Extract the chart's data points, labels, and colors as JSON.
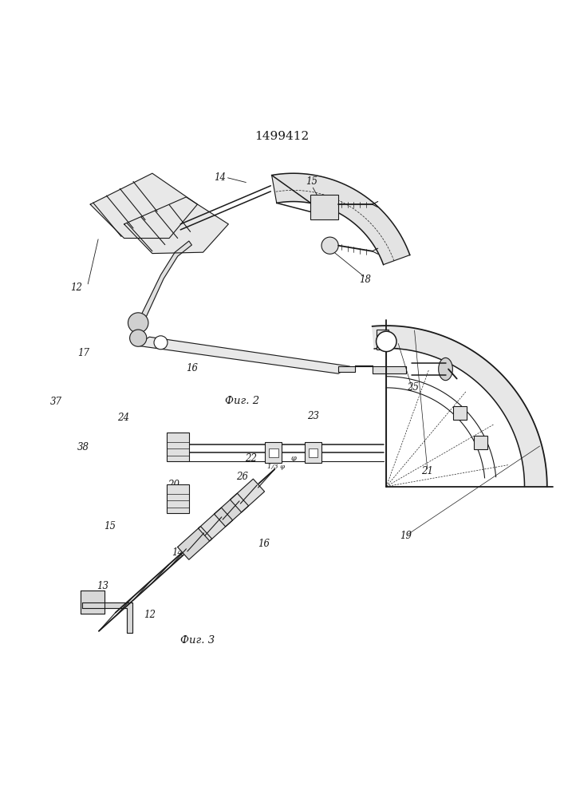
{
  "title": "1499412",
  "fig2_label": "Фиг. 2",
  "fig3_label": "Фиг. 3",
  "bg_color": "#ffffff",
  "line_color": "#1a1a1a",
  "title_fontsize": 11,
  "label_fontsize": 8.5
}
